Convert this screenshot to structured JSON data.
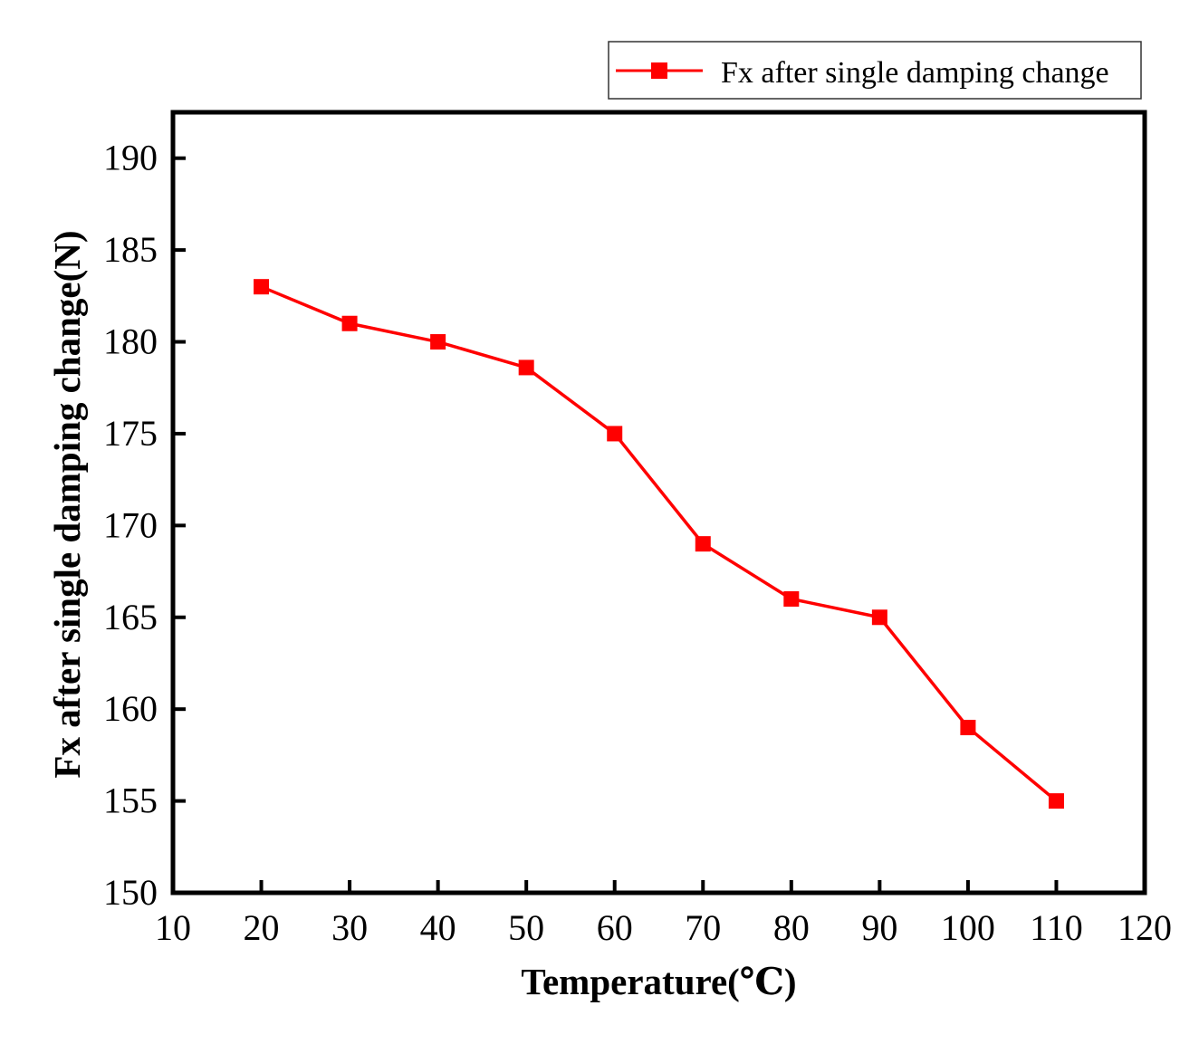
{
  "chart_data": {
    "type": "line",
    "title": "",
    "xlabel": "Temperature(℃)",
    "ylabel": "Fx after single damping change(N)",
    "xlim": [
      10,
      120
    ],
    "ylim": [
      150,
      192.5
    ],
    "xticks": [
      10,
      20,
      30,
      40,
      50,
      60,
      70,
      80,
      90,
      100,
      110,
      120
    ],
    "yticks": [
      150,
      155,
      160,
      165,
      170,
      175,
      180,
      185,
      190
    ],
    "x_tick_labels": [
      "10",
      "20",
      "30",
      "40",
      "50",
      "60",
      "70",
      "80",
      "90",
      "100",
      "110",
      "120"
    ],
    "y_tick_labels": [
      "150",
      "155",
      "160",
      "165",
      "170",
      "175",
      "180",
      "185",
      "190"
    ],
    "grid": false,
    "legend_position": "top-right, above plot",
    "series": [
      {
        "name": "Fx after single damping change",
        "color": "#ff0000",
        "marker": "square",
        "x": [
          20,
          30,
          40,
          50,
          60,
          70,
          80,
          90,
          100,
          110
        ],
        "y": [
          183,
          181,
          180,
          178.6,
          175,
          169,
          166,
          165,
          159,
          155
        ]
      }
    ]
  }
}
